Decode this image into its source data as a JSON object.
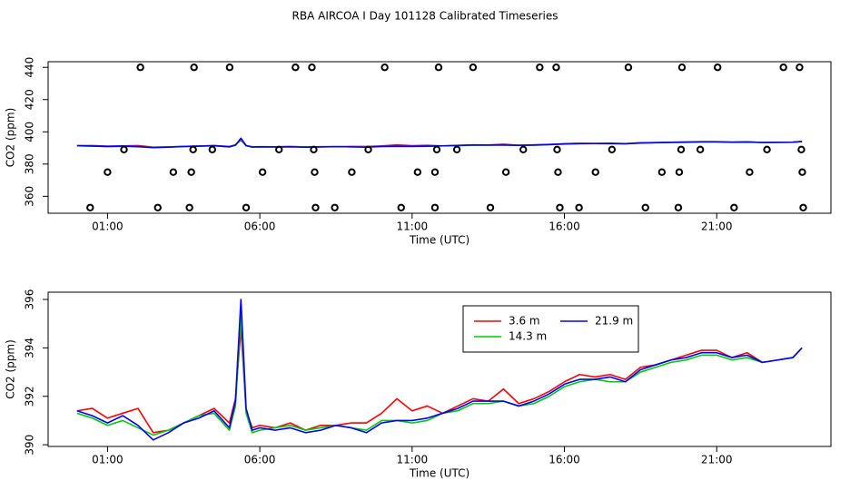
{
  "title": "RBA AIRCOA I  Day 101128  Calibrated Timeseries",
  "chart_data": [
    {
      "type": "line",
      "x_label": "Time (UTC)",
      "y_label": "CO2 (ppm)",
      "xlim": [
        -0.95,
        24.75
      ],
      "ylim": [
        349.5,
        443.5
      ],
      "xticks": [
        {
          "value": 1,
          "label": "01:00"
        },
        {
          "value": 6,
          "label": "06:00"
        },
        {
          "value": 11,
          "label": "11:00"
        },
        {
          "value": 16,
          "label": "16:00"
        },
        {
          "value": 21,
          "label": "21:00"
        }
      ],
      "yticks": [
        360,
        380,
        400,
        420,
        440
      ],
      "x": [
        0,
        0.5,
        1,
        1.5,
        2,
        2.5,
        3,
        3.5,
        4,
        4.5,
        5,
        5.2,
        5.38,
        5.55,
        5.75,
        6,
        6.5,
        7,
        7.5,
        8,
        8.5,
        9,
        9.5,
        10,
        10.5,
        11,
        11.5,
        12,
        12.5,
        13,
        13.5,
        14,
        14.5,
        15,
        15.5,
        16,
        16.5,
        17,
        17.5,
        18,
        18.5,
        19,
        19.5,
        20,
        20.5,
        21,
        21.5,
        22,
        22.5,
        23,
        23.5,
        23.8
      ],
      "series": [
        {
          "color": "#ff0000",
          "values": [
            391.4,
            391.5,
            391.1,
            391.3,
            391.5,
            390.5,
            390.6,
            390.9,
            391.2,
            391.5,
            390.9,
            391.9,
            394.8,
            391.4,
            390.7,
            390.8,
            390.7,
            390.9,
            390.6,
            390.8,
            390.8,
            390.9,
            390.9,
            391.3,
            391.9,
            391.4,
            391.6,
            391.3,
            391.6,
            391.9,
            391.8,
            392.3,
            391.7,
            391.9,
            392.2,
            392.6,
            392.9,
            392.8,
            392.9,
            392.7,
            393.2,
            393.3,
            393.5,
            393.7,
            393.9,
            393.9,
            393.6,
            393.8,
            393.4,
            393.5,
            393.6,
            394.0
          ]
        },
        {
          "color": "#00cd00",
          "values": [
            391.3,
            391.1,
            390.8,
            391.0,
            390.7,
            390.4,
            390.6,
            390.9,
            391.2,
            391.3,
            390.6,
            391.6,
            395.3,
            391.3,
            390.5,
            390.6,
            390.7,
            390.8,
            390.6,
            390.7,
            390.8,
            390.7,
            390.6,
            391.0,
            391.0,
            390.9,
            391.0,
            391.3,
            391.4,
            391.7,
            391.7,
            391.8,
            391.6,
            391.7,
            392.0,
            392.4,
            392.6,
            392.7,
            392.6,
            392.6,
            393.0,
            393.2,
            393.4,
            393.5,
            393.7,
            393.7,
            393.5,
            393.6,
            393.4,
            393.5,
            393.6,
            394.0
          ]
        },
        {
          "color": "#0000ff",
          "values": [
            391.4,
            391.2,
            390.9,
            391.2,
            390.8,
            390.2,
            390.5,
            390.9,
            391.1,
            391.4,
            390.7,
            391.8,
            396.0,
            391.5,
            390.6,
            390.7,
            390.6,
            390.7,
            390.5,
            390.6,
            390.8,
            390.7,
            390.5,
            390.9,
            391.0,
            391.0,
            391.1,
            391.3,
            391.5,
            391.8,
            391.8,
            391.8,
            391.6,
            391.8,
            392.1,
            392.5,
            392.7,
            392.7,
            392.8,
            392.6,
            393.1,
            393.3,
            393.5,
            393.6,
            393.8,
            393.8,
            393.6,
            393.7,
            393.4,
            393.5,
            393.6,
            394.0
          ]
        },
        {
          "type": "scatter",
          "color": "#000000",
          "x": [
            2.08,
            3.84,
            5.01,
            7.17,
            7.71,
            10.1,
            11.87,
            13.0,
            15.19,
            15.73,
            18.1,
            19.86,
            21.03,
            23.19,
            23.72,
            1.54,
            3.81,
            4.44,
            6.63,
            7.77,
            9.56,
            11.81,
            12.47,
            14.65,
            15.76,
            17.56,
            19.83,
            20.46,
            22.65,
            23.78,
            1.0,
            3.16,
            3.75,
            6.09,
            7.8,
            9.02,
            11.18,
            11.75,
            14.08,
            15.79,
            17.02,
            19.2,
            19.77,
            22.08,
            23.81,
            0.43,
            2.65,
            3.69,
            5.55,
            7.83,
            8.46,
            10.64,
            11.75,
            13.57,
            15.85,
            16.48,
            18.66,
            19.74,
            21.57,
            23.84
          ],
          "values": [
            440,
            440,
            440,
            440,
            440,
            440,
            440,
            440,
            440,
            440,
            440,
            440,
            440,
            440,
            440,
            389,
            389,
            389,
            389,
            389,
            389,
            389,
            389,
            389,
            389,
            389,
            389,
            389,
            389,
            389,
            375,
            375,
            375,
            375,
            375,
            375,
            375,
            375,
            375,
            375,
            375,
            375,
            375,
            375,
            375,
            353,
            353,
            353,
            353,
            353,
            353,
            353,
            353,
            353,
            353,
            353,
            353,
            353,
            353,
            353
          ]
        }
      ]
    },
    {
      "type": "line",
      "x_label": "Time (UTC)",
      "y_label": "CO2 (ppm)",
      "xlim": [
        -0.95,
        24.75
      ],
      "ylim": [
        389.93,
        396.3
      ],
      "xticks": [
        {
          "value": 1,
          "label": "01:00"
        },
        {
          "value": 6,
          "label": "06:00"
        },
        {
          "value": 11,
          "label": "11:00"
        },
        {
          "value": 16,
          "label": "16:00"
        },
        {
          "value": 21,
          "label": "21:00"
        }
      ],
      "yticks": [
        390,
        392,
        394,
        396
      ],
      "legend": "top",
      "x": [
        0,
        0.5,
        1,
        1.5,
        2,
        2.5,
        3,
        3.5,
        4,
        4.5,
        5,
        5.2,
        5.38,
        5.55,
        5.75,
        6,
        6.5,
        7,
        7.5,
        8,
        8.5,
        9,
        9.5,
        10,
        10.5,
        11,
        11.5,
        12,
        12.5,
        13,
        13.5,
        14,
        14.5,
        15,
        15.5,
        16,
        16.5,
        17,
        17.5,
        18,
        18.5,
        19,
        19.5,
        20,
        20.5,
        21,
        21.5,
        22,
        22.5,
        23,
        23.5,
        23.8
      ],
      "series": [
        {
          "name": "3.6 m",
          "color": "#ff0000",
          "values": [
            391.4,
            391.5,
            391.1,
            391.3,
            391.5,
            390.5,
            390.6,
            390.9,
            391.2,
            391.5,
            390.9,
            391.9,
            394.8,
            391.4,
            390.7,
            390.8,
            390.7,
            390.9,
            390.6,
            390.8,
            390.8,
            390.9,
            390.9,
            391.3,
            391.9,
            391.4,
            391.6,
            391.3,
            391.6,
            391.9,
            391.8,
            392.3,
            391.7,
            391.9,
            392.2,
            392.6,
            392.9,
            392.8,
            392.9,
            392.7,
            393.2,
            393.3,
            393.5,
            393.7,
            393.9,
            393.9,
            393.6,
            393.8,
            393.4,
            393.5,
            393.6,
            394.0
          ]
        },
        {
          "name": "14.3 m",
          "color": "#00cd00",
          "values": [
            391.3,
            391.1,
            390.8,
            391.0,
            390.7,
            390.4,
            390.6,
            390.9,
            391.2,
            391.3,
            390.6,
            391.6,
            395.3,
            391.3,
            390.5,
            390.6,
            390.7,
            390.8,
            390.6,
            390.7,
            390.8,
            390.7,
            390.6,
            391.0,
            391.0,
            390.9,
            391.0,
            391.3,
            391.4,
            391.7,
            391.7,
            391.8,
            391.6,
            391.7,
            392.0,
            392.4,
            392.6,
            392.7,
            392.6,
            392.6,
            393.0,
            393.2,
            393.4,
            393.5,
            393.7,
            393.7,
            393.5,
            393.6,
            393.4,
            393.5,
            393.6,
            394.0
          ]
        },
        {
          "name": "21.9 m",
          "color": "#0000ff",
          "values": [
            391.4,
            391.2,
            390.9,
            391.2,
            390.8,
            390.2,
            390.5,
            390.9,
            391.1,
            391.4,
            390.7,
            391.8,
            396.0,
            391.5,
            390.6,
            390.7,
            390.6,
            390.7,
            390.5,
            390.6,
            390.8,
            390.7,
            390.5,
            390.9,
            391.0,
            391.0,
            391.1,
            391.3,
            391.5,
            391.8,
            391.8,
            391.8,
            391.6,
            391.8,
            392.1,
            392.5,
            392.7,
            392.7,
            392.8,
            392.6,
            393.1,
            393.3,
            393.5,
            393.6,
            393.8,
            393.8,
            393.6,
            393.7,
            393.4,
            393.5,
            393.6,
            394.0
          ]
        }
      ]
    }
  ]
}
